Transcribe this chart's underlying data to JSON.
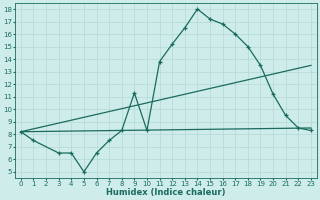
{
  "xlabel": "Humidex (Indice chaleur)",
  "xlim": [
    -0.5,
    23.5
  ],
  "ylim": [
    4.5,
    18.5
  ],
  "yticks": [
    5,
    6,
    7,
    8,
    9,
    10,
    11,
    12,
    13,
    14,
    15,
    16,
    17,
    18
  ],
  "xticks": [
    0,
    1,
    2,
    3,
    4,
    5,
    6,
    7,
    8,
    9,
    10,
    11,
    12,
    13,
    14,
    15,
    16,
    17,
    18,
    19,
    20,
    21,
    22,
    23
  ],
  "bg_color": "#ceecea",
  "line_color": "#1a6b5e",
  "grid_color": "#aed4d0",
  "line1_x": [
    0,
    1,
    3,
    4,
    5,
    6,
    7,
    8,
    9,
    10,
    11,
    12,
    13,
    14,
    15,
    16,
    17,
    18,
    19,
    20,
    21,
    22,
    23
  ],
  "line1_y": [
    8.2,
    7.5,
    6.5,
    6.5,
    5.0,
    6.5,
    7.5,
    8.3,
    11.3,
    8.3,
    13.8,
    15.2,
    16.5,
    18.0,
    17.2,
    16.8,
    16.0,
    15.0,
    13.5,
    11.2,
    9.5,
    8.5,
    8.3
  ],
  "line2_x": [
    0,
    23
  ],
  "line2_y": [
    8.2,
    8.5
  ],
  "line3_x": [
    0,
    23
  ],
  "line3_y": [
    8.2,
    13.5
  ]
}
